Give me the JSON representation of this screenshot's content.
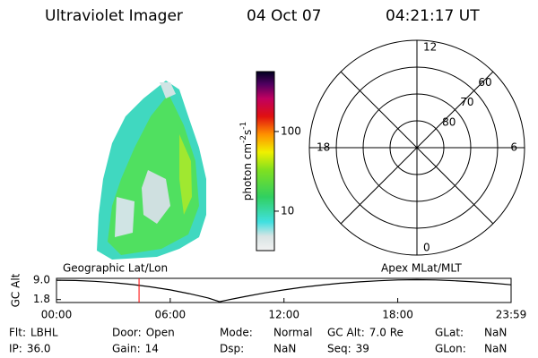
{
  "header": {
    "title": "Ultraviolet Imager",
    "date": "04 Oct 07",
    "time": "04:21:17 UT"
  },
  "colorbar": {
    "label": {
      "text": "photon cm",
      "exp1": "-2",
      "unit2": "s",
      "exp2": "-1"
    },
    "log": true,
    "lim": [
      3.2,
      565
    ],
    "ticks": [
      10,
      100
    ]
  },
  "polar": {
    "rings": [
      {
        "value": 60,
        "label": "60"
      },
      {
        "value": 70,
        "label": "70"
      },
      {
        "value": 80,
        "label": "80"
      }
    ],
    "rlim": [
      50,
      90
    ],
    "hours": [
      {
        "value": 12,
        "label": "12"
      },
      {
        "value": 6,
        "label": "6"
      },
      {
        "value": 0,
        "label": "0"
      },
      {
        "value": 18,
        "label": "18"
      }
    ]
  },
  "chart_data": {
    "type": "line",
    "ylabel": "GC Alt",
    "left_label": "Geographic Lat/Lon",
    "right_label": "Apex MLat/MLT",
    "x": [
      0,
      1,
      2,
      3,
      4,
      5,
      6,
      7,
      8,
      8.6,
      9,
      10,
      11,
      12,
      13,
      14,
      15,
      16,
      17,
      18,
      19,
      20,
      21,
      22,
      23,
      23.98
    ],
    "series": [
      {
        "name": "GC Alt",
        "color": "#000000",
        "values": [
          9.0,
          8.9,
          8.6,
          8.1,
          7.4,
          6.5,
          5.4,
          4.0,
          2.4,
          1.0,
          1.6,
          3.0,
          4.3,
          5.4,
          6.4,
          7.2,
          7.9,
          8.4,
          8.8,
          9.1,
          9.2,
          9.1,
          8.8,
          8.4,
          7.9,
          7.3
        ]
      }
    ],
    "marker_x": 4.355,
    "marker_color": "#ff0000",
    "xlim": [
      0,
      23.98
    ],
    "xticks": [
      {
        "value": 0,
        "label": "00:00"
      },
      {
        "value": 6,
        "label": "06:00"
      },
      {
        "value": 12,
        "label": "12:00"
      },
      {
        "value": 18,
        "label": "18:00"
      },
      {
        "value": 23.98,
        "label": "23:59"
      }
    ],
    "ylim": [
      0.7,
      9.7
    ],
    "yticks": [
      {
        "value": 9.0,
        "label": "9.0"
      },
      {
        "value": 1.8,
        "label": "1.8"
      }
    ]
  },
  "footer": {
    "rows": [
      [
        {
          "label": "Flt:",
          "value": "LBHL"
        },
        {
          "label": "Door:",
          "value": "Open"
        },
        {
          "label": "Mode:",
          "value": "Normal"
        },
        {
          "label": "GC Alt:",
          "value": "7.0 Re"
        },
        {
          "label": "GLat:",
          "value": "NaN"
        }
      ],
      [
        {
          "label": "IP:",
          "value": "36.0"
        },
        {
          "label": "Gain:",
          "value": "14"
        },
        {
          "label": "Dsp:",
          "value": "NaN"
        },
        {
          "label": "Seq:",
          "value": "39"
        },
        {
          "label": "GLon:",
          "value": "NaN"
        }
      ]
    ]
  }
}
